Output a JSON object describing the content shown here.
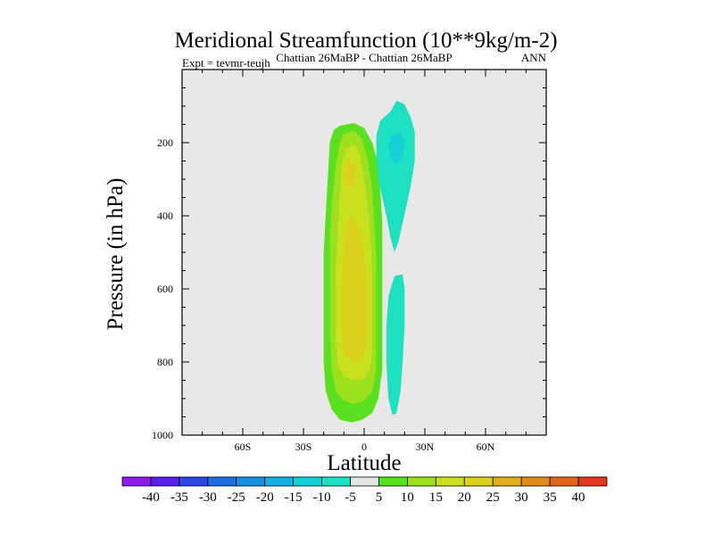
{
  "chart_data": {
    "type": "heatmap",
    "title": "Meridional Streamfunction (10**9kg/m-2)",
    "left_label": "Expt = tevmr-teujh",
    "center_label": "Chattian  26MaBP - Chattian  26MaBP",
    "right_label": "ANN",
    "xlabel": "Latitude",
    "ylabel": "Pressure (in hPa)",
    "xlim": [
      -90,
      90
    ],
    "ylim": [
      0,
      1000
    ],
    "y_reversed": true,
    "x_ticks": [
      {
        "value": -60,
        "label": "60S"
      },
      {
        "value": -30,
        "label": "30S"
      },
      {
        "value": 0,
        "label": "0"
      },
      {
        "value": 30,
        "label": "30N"
      },
      {
        "value": 60,
        "label": "60N"
      }
    ],
    "y_ticks": [
      {
        "value": 200,
        "label": "200"
      },
      {
        "value": 400,
        "label": "400"
      },
      {
        "value": 600,
        "label": "600"
      },
      {
        "value": 800,
        "label": "800"
      },
      {
        "value": 1000,
        "label": "1000"
      }
    ],
    "background_color": "#e8e8e8",
    "colorbar": {
      "labels": [
        "-40",
        "-35",
        "-30",
        "-25",
        "-20",
        "-15",
        "-10",
        "-5",
        "5",
        "10",
        "15",
        "20",
        "25",
        "30",
        "35",
        "40"
      ],
      "colors": [
        "#8c1fe6",
        "#5a1fe6",
        "#2f44e0",
        "#1e6ce0",
        "#1a8fe0",
        "#15b0e0",
        "#15d0d6",
        "#1fe0c0",
        "#e6e6e6",
        "#5be01f",
        "#9de01f",
        "#c8e01f",
        "#dcd01f",
        "#e0b01f",
        "#e08d1f",
        "#e0651f",
        "#e0371f"
      ]
    },
    "contours": [
      {
        "name": "positive-cell-5",
        "level": 5,
        "color": "#5be01f",
        "points": [
          [
            -12,
            154
          ],
          [
            -5,
            146
          ],
          [
            0,
            160
          ],
          [
            4,
            200
          ],
          [
            7,
            260
          ],
          [
            8,
            330
          ],
          [
            9,
            420
          ],
          [
            9,
            520
          ],
          [
            9,
            620
          ],
          [
            9,
            720
          ],
          [
            9,
            820
          ],
          [
            7,
            900
          ],
          [
            4,
            940
          ],
          [
            -1,
            958
          ],
          [
            -6,
            965
          ],
          [
            -12,
            958
          ],
          [
            -16,
            930
          ],
          [
            -19,
            880
          ],
          [
            -20,
            800
          ],
          [
            -20,
            700
          ],
          [
            -20,
            600
          ],
          [
            -20,
            500
          ],
          [
            -19,
            400
          ],
          [
            -18,
            300
          ],
          [
            -17,
            200
          ],
          [
            -15,
            165
          ]
        ]
      },
      {
        "name": "positive-cell-10",
        "level": 10,
        "color": "#9de01f",
        "points": [
          [
            -10,
            175
          ],
          [
            -5,
            168
          ],
          [
            -1,
            190
          ],
          [
            2,
            250
          ],
          [
            4,
            330
          ],
          [
            5,
            420
          ],
          [
            6,
            520
          ],
          [
            6,
            620
          ],
          [
            6,
            720
          ],
          [
            6,
            820
          ],
          [
            4,
            880
          ],
          [
            0,
            905
          ],
          [
            -5,
            915
          ],
          [
            -10,
            905
          ],
          [
            -14,
            880
          ],
          [
            -16,
            820
          ],
          [
            -17,
            720
          ],
          [
            -17,
            600
          ],
          [
            -17,
            480
          ],
          [
            -16,
            360
          ],
          [
            -14,
            260
          ],
          [
            -12,
            200
          ]
        ]
      },
      {
        "name": "positive-cell-15",
        "level": 15,
        "color": "#c8e01f",
        "points": [
          [
            -9,
            215
          ],
          [
            -5,
            205
          ],
          [
            -2,
            230
          ],
          [
            0,
            300
          ],
          [
            2,
            380
          ],
          [
            3,
            460
          ],
          [
            4,
            560
          ],
          [
            4,
            660
          ],
          [
            4,
            760
          ],
          [
            3,
            820
          ],
          [
            0,
            845
          ],
          [
            -5,
            850
          ],
          [
            -10,
            840
          ],
          [
            -13,
            810
          ],
          [
            -14,
            740
          ],
          [
            -14,
            640
          ],
          [
            -14,
            540
          ],
          [
            -13,
            440
          ],
          [
            -12,
            340
          ],
          [
            -11,
            260
          ]
        ]
      },
      {
        "name": "positive-cell-20",
        "level": 20,
        "color": "#dcd01f",
        "points": [
          [
            -8,
            250
          ],
          [
            -4,
            262
          ],
          [
            -4,
            300
          ],
          [
            -6,
            325
          ],
          [
            -9,
            320
          ],
          [
            -10,
            280
          ]
        ]
      },
      {
        "name": "positive-cell-20-lower",
        "level": 20,
        "color": "#dcd01f",
        "points": [
          [
            -7,
            400
          ],
          [
            -3,
            420
          ],
          [
            0,
            500
          ],
          [
            2,
            600
          ],
          [
            2,
            700
          ],
          [
            1,
            770
          ],
          [
            -2,
            795
          ],
          [
            -6,
            800
          ],
          [
            -10,
            780
          ],
          [
            -11,
            700
          ],
          [
            -11,
            600
          ],
          [
            -10,
            500
          ],
          [
            -9,
            440
          ]
        ]
      },
      {
        "name": "negative-cell-upper-5",
        "level": -5,
        "color": "#1fe0c0",
        "points": [
          [
            13,
            115
          ],
          [
            16,
            85
          ],
          [
            20,
            95
          ],
          [
            23,
            130
          ],
          [
            25,
            170
          ],
          [
            25,
            250
          ],
          [
            23,
            320
          ],
          [
            21,
            370
          ],
          [
            19,
            420
          ],
          [
            17,
            470
          ],
          [
            15,
            500
          ],
          [
            13,
            460
          ],
          [
            11,
            400
          ],
          [
            9,
            350
          ],
          [
            7,
            300
          ],
          [
            6,
            240
          ],
          [
            6,
            180
          ],
          [
            8,
            140
          ]
        ]
      },
      {
        "name": "negative-cell-upper-10",
        "level": -10,
        "color": "#15d0d6",
        "points": [
          [
            13,
            180
          ],
          [
            18,
            170
          ],
          [
            20,
            200
          ],
          [
            19,
            240
          ],
          [
            16,
            260
          ],
          [
            13,
            245
          ],
          [
            12,
            210
          ]
        ]
      },
      {
        "name": "negative-cell-lower-5",
        "level": -5,
        "color": "#1fe0c0",
        "points": [
          [
            15,
            565
          ],
          [
            19,
            560
          ],
          [
            20,
            600
          ],
          [
            20,
            700
          ],
          [
            19,
            800
          ],
          [
            18,
            880
          ],
          [
            16,
            940
          ],
          [
            14,
            945
          ],
          [
            12,
            900
          ],
          [
            11,
            800
          ],
          [
            11,
            700
          ],
          [
            12,
            620
          ]
        ]
      }
    ]
  }
}
